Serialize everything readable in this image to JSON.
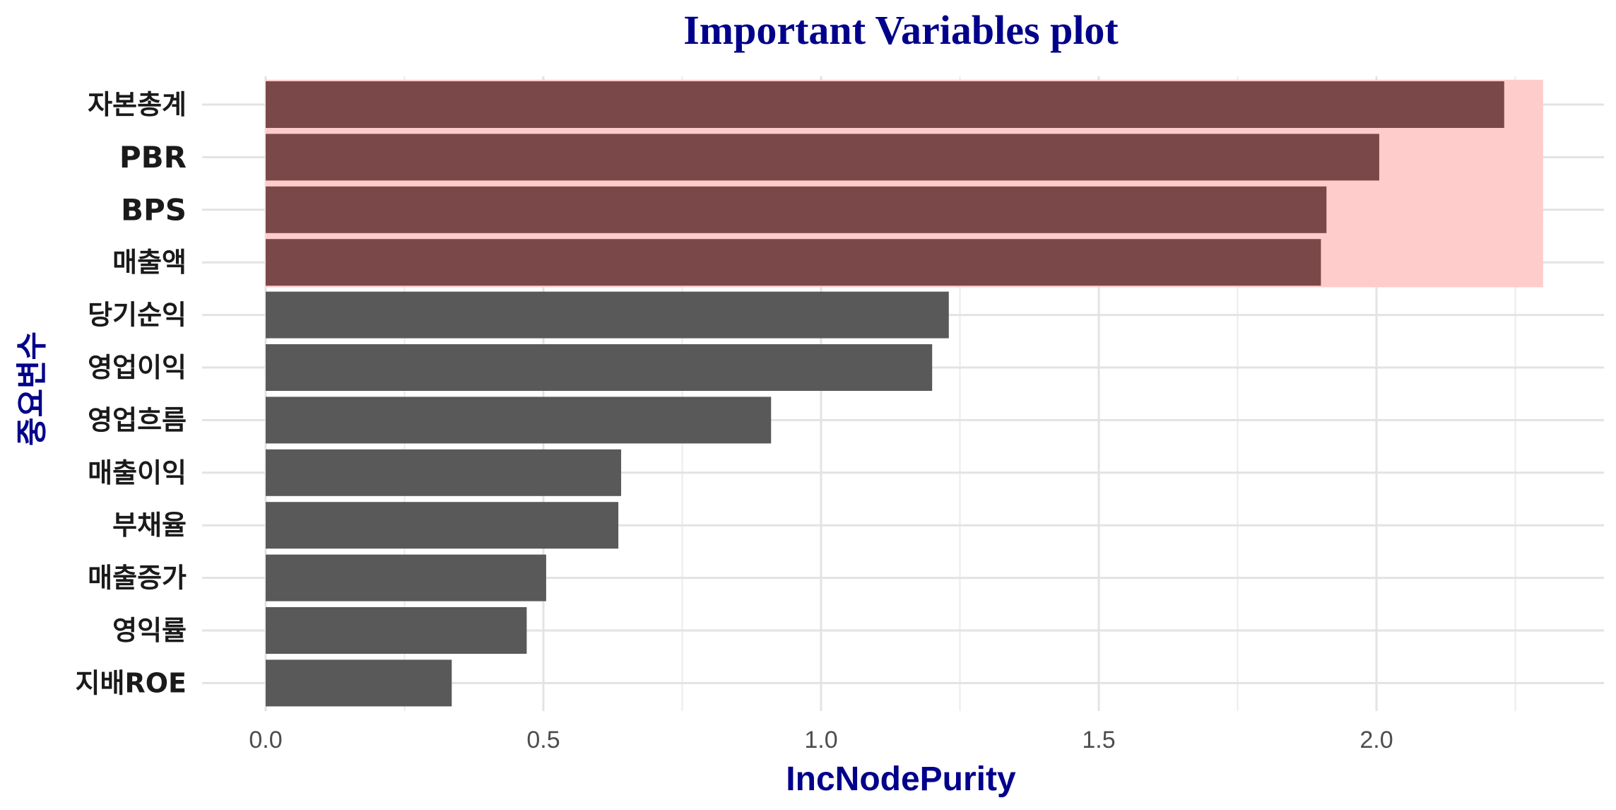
{
  "chart_data": {
    "type": "bar",
    "orientation": "horizontal",
    "title": "Important Variables plot",
    "xlabel": "IncNodePurity",
    "ylabel": "중요변수",
    "categories": [
      "자본총계",
      "PBR",
      "BPS",
      "매출액",
      "당기순익",
      "영업이익",
      "영업흐름",
      "매출이익",
      "부채율",
      "매출증가",
      "영익률",
      "지배ROE"
    ],
    "values": [
      2.23,
      2.005,
      1.91,
      1.9,
      1.23,
      1.2,
      0.91,
      0.64,
      0.635,
      0.505,
      0.47,
      0.335
    ],
    "xlim": [
      0.0,
      2.3
    ],
    "xticks": [
      "0.0",
      "0.5",
      "1.0",
      "1.5",
      "2.0"
    ],
    "grid": true,
    "highlight": {
      "categories": [
        "자본총계",
        "PBR",
        "BPS",
        "매출액"
      ],
      "bar_color": "#7A4848",
      "band_color": "#FFCCCC"
    },
    "bar_color": "#595959"
  }
}
